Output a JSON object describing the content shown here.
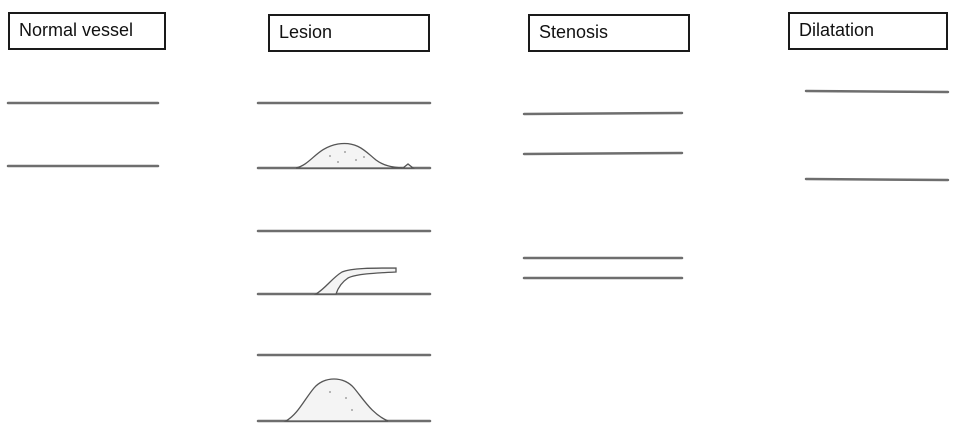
{
  "panels": {
    "normal": {
      "label": "Normal vessel"
    },
    "lesion": {
      "label": "Lesion"
    },
    "stenosis": {
      "label": "Stenosis"
    },
    "dilatation": {
      "label": "Dilatation"
    }
  },
  "colors": {
    "wall": "#6e6e6e",
    "border": "#1a1a1a",
    "background": "#ffffff"
  }
}
